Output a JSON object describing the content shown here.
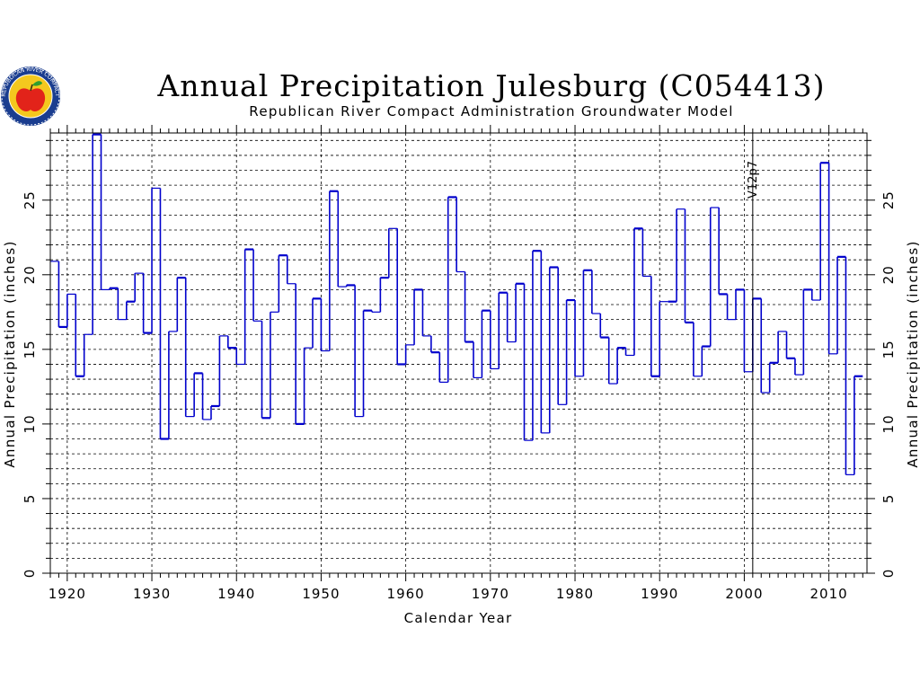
{
  "logo": {
    "ring_text": "REPUBLICAN RIVER COMPACT",
    "ring_color": "#1a3d8f",
    "fill_color": "#f4c81e",
    "apple_color": "#e2231a",
    "leaf_color": "#2f9e2f"
  },
  "colors": {
    "series": "#0000cc",
    "grid": "#000000"
  },
  "chart_data": {
    "type": "line",
    "step": true,
    "title": "Annual Precipitation Julesburg (C054413)",
    "subtitle": "Republican River Compact Administration Groundwater Model",
    "xlabel": "Calendar Year",
    "ylabel_left": "Annual Precipitation (inches)",
    "ylabel_right": "Annual Precipitation (inches)",
    "xlim": [
      1918,
      2014.5
    ],
    "ylim": [
      0,
      29.5
    ],
    "xticks": [
      1920,
      1930,
      1940,
      1950,
      1960,
      1970,
      1980,
      1990,
      2000,
      2010
    ],
    "yticks": [
      0,
      5,
      10,
      15,
      20,
      25
    ],
    "grid": true,
    "marker": {
      "x": 2001,
      "label": "V12p7"
    },
    "series": [
      {
        "x": [
          1918,
          1919,
          1920,
          1921,
          1922,
          1923,
          1924,
          1925,
          1926,
          1927,
          1928,
          1929,
          1930,
          1931,
          1932,
          1933,
          1934,
          1935,
          1936,
          1937,
          1938,
          1939,
          1940,
          1941,
          1942,
          1943,
          1944,
          1945,
          1946,
          1947,
          1948,
          1949,
          1950,
          1951,
          1952,
          1953,
          1954,
          1955,
          1956,
          1957,
          1958,
          1959,
          1960,
          1961,
          1962,
          1963,
          1964,
          1965,
          1966,
          1967,
          1968,
          1969,
          1970,
          1971,
          1972,
          1973,
          1974,
          1975,
          1976,
          1977,
          1978,
          1979,
          1980,
          1981,
          1982,
          1983,
          1984,
          1985,
          1986,
          1987,
          1988,
          1989,
          1990,
          1991,
          1992,
          1993,
          1994,
          1995,
          1996,
          1997,
          1998,
          1999,
          2000,
          2001,
          2002,
          2003,
          2004,
          2005,
          2006,
          2007,
          2008,
          2009,
          2010,
          2011,
          2012,
          2013
        ],
        "values": [
          20.9,
          16.5,
          18.7,
          13.2,
          16.0,
          29.4,
          19.0,
          19.1,
          17.0,
          18.2,
          20.1,
          16.1,
          25.8,
          9.0,
          16.2,
          19.8,
          10.5,
          13.4,
          10.3,
          11.2,
          15.9,
          15.1,
          14.0,
          21.7,
          16.9,
          10.4,
          17.5,
          21.3,
          19.4,
          10.0,
          15.1,
          18.4,
          14.9,
          25.6,
          19.2,
          19.3,
          10.5,
          17.6,
          17.5,
          19.8,
          23.1,
          14.0,
          15.3,
          19.0,
          15.9,
          14.8,
          12.8,
          25.2,
          20.2,
          15.5,
          13.1,
          17.6,
          13.7,
          18.8,
          15.5,
          19.4,
          8.9,
          21.6,
          9.4,
          20.5,
          11.3,
          18.3,
          13.2,
          20.3,
          17.4,
          15.8,
          12.7,
          15.1,
          14.6,
          23.1,
          19.9,
          13.2,
          18.2,
          18.2,
          24.4,
          16.8,
          13.2,
          15.2,
          24.5,
          18.7,
          17.0,
          19.0,
          13.5,
          18.4,
          12.1,
          14.1,
          16.2,
          14.4,
          13.3,
          19.0,
          18.3,
          27.5,
          14.7,
          21.2,
          6.6,
          13.2
        ]
      }
    ]
  }
}
